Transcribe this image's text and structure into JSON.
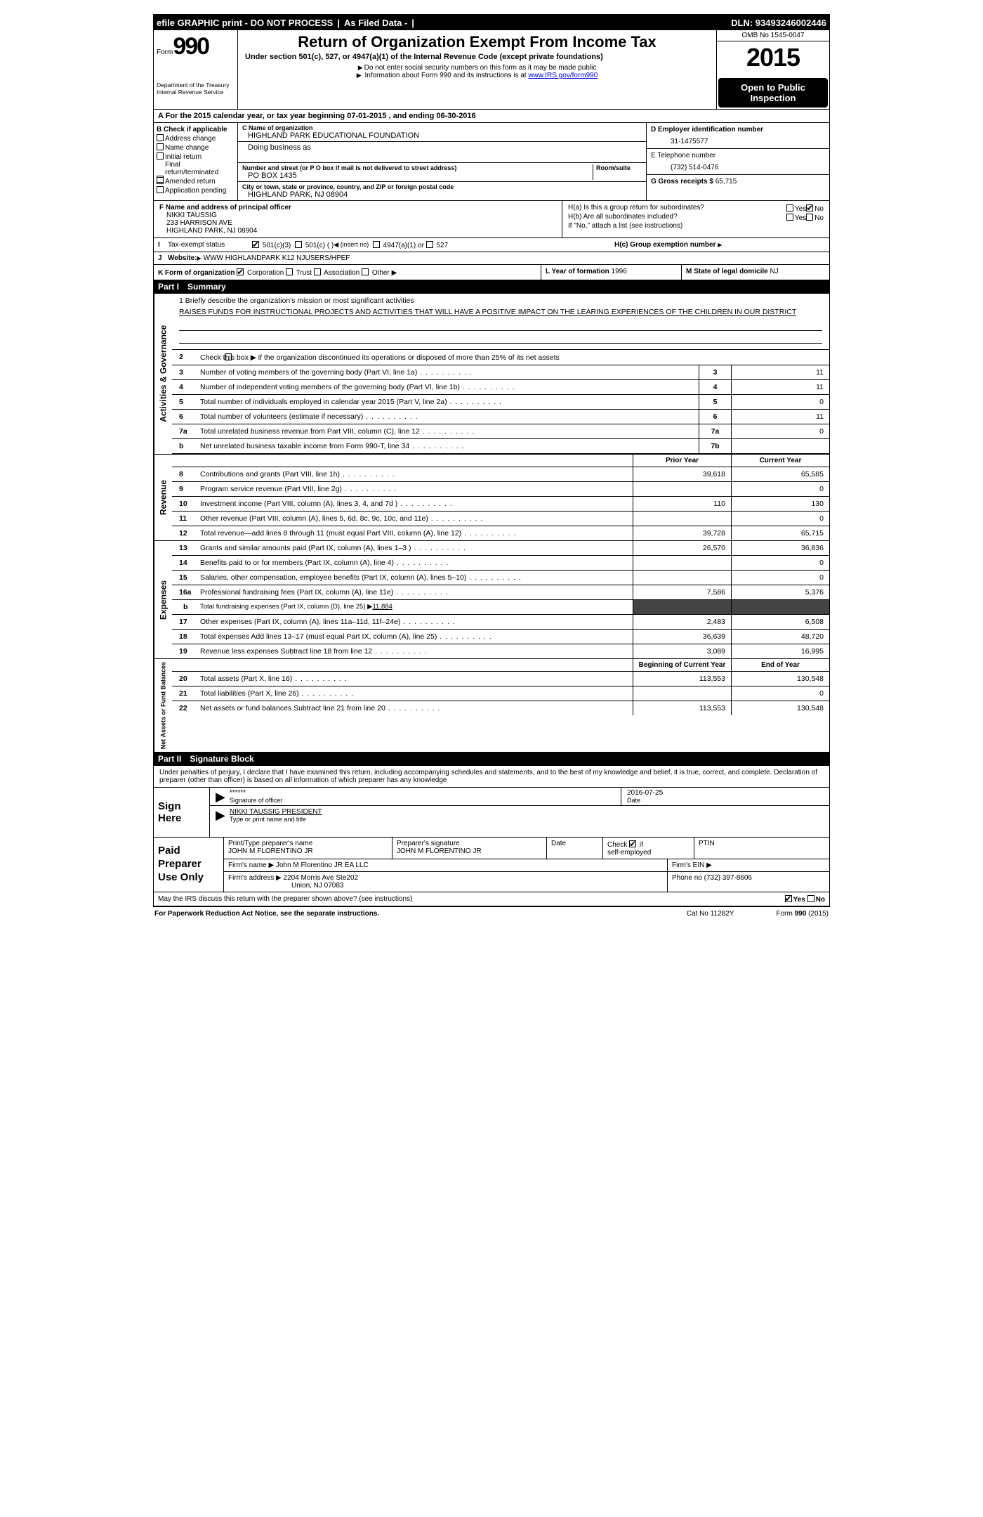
{
  "topbar": {
    "efile": "efile GRAPHIC print - DO NOT PROCESS",
    "asfiled": "As Filed Data -",
    "dln": "DLN: 93493246002446"
  },
  "header": {
    "form_word": "Form",
    "form_num": "990",
    "dept1": "Department of the Treasury",
    "dept2": "Internal Revenue Service",
    "title": "Return of Organization Exempt From Income Tax",
    "sub": "Under section 501(c), 527, or 4947(a)(1) of the Internal Revenue Code (except private foundations)",
    "note1": "Do not enter social security numbers on this form as it may be made public",
    "note2_pre": "Information about Form 990 and its instructions is at ",
    "note2_link": "www.IRS.gov/form990",
    "omb": "OMB No 1545-0047",
    "year": "2015",
    "inspect": "Open to Public Inspection"
  },
  "sec_a": {
    "text_pre": "A  For the 2015 calendar year, or tax year beginning ",
    "begin": "07-01-2015",
    "mid": " , and ending ",
    "end": "06-30-2016"
  },
  "col_b": {
    "hd": "B Check if applicable",
    "o1": "Address change",
    "o2": "Name change",
    "o3": "Initial return",
    "o4a": "Final",
    "o4b": "return/terminated",
    "o5": "Amended return",
    "o6": "Application pending"
  },
  "col_c": {
    "name_lbl": "C Name of organization",
    "name": "HIGHLAND PARK EDUCATIONAL FOUNDATION",
    "dba_lbl": "Doing business as",
    "street_lbl": "Number and street (or P O box if mail is not delivered to street address)",
    "room_lbl": "Room/suite",
    "street": "PO BOX 1435",
    "city_lbl": "City or town, state or province, country, and ZIP or foreign postal code",
    "city": "HIGHLAND PARK, NJ  08904"
  },
  "col_de": {
    "d_lbl": "D Employer identification number",
    "d_val": "31-1475577",
    "e_lbl": "E Telephone number",
    "e_val": "(732) 514-0476",
    "g_lbl": "G Gross receipts $ ",
    "g_val": "65,715"
  },
  "f": {
    "lbl": "F  Name and address of principal officer",
    "l1": "NIKKI TAUSSIG",
    "l2": "233 HARRISON AVE",
    "l3": "HIGHLAND PARK, NJ  08904"
  },
  "h": {
    "a": "H(a)  Is this a group return for subordinates?",
    "b": "H(b)  Are all subordinates included?",
    "note": "If \"No,\" attach a list (see instructions)",
    "c": "H(c)  Group exemption number",
    "yes": "Yes",
    "no": "No"
  },
  "i": {
    "tag": "I",
    "lbl": "Tax-exempt status",
    "o1": "501(c)(3)",
    "o2": "501(c) (  )",
    "o2ins": "(insert no)",
    "o3": "4947(a)(1) or",
    "o4": "527"
  },
  "j": {
    "tag": "J",
    "lbl": "Website:",
    "val": "WWW HIGHLANDPARK K12 NJUSERS/HPEF"
  },
  "k": {
    "lbl": "K Form of organization",
    "o1": "Corporation",
    "o2": "Trust",
    "o3": "Association",
    "o4": "Other"
  },
  "l": {
    "lbl": "L Year of formation",
    "val": "1996"
  },
  "m": {
    "lbl": "M State of legal domicile",
    "val": "NJ"
  },
  "part1": {
    "label": "Part I",
    "title": "Summary"
  },
  "mission": {
    "q": "1 Briefly describe the organization's mission or most significant activities",
    "text": "RAISES FUNDS FOR INSTRUCTIONAL PROJECTS AND ACTIVITIES THAT WILL HAVE A POSITIVE IMPACT ON THE LEARING EXPERIENCES OF THE CHILDREN IN OUR DISTRICT"
  },
  "line2": "Check this box ▶   if the organization discontinued its operations or disposed of more than 25% of its net assets",
  "lines_gov": [
    {
      "n": "3",
      "t": "Number of voting members of the governing body (Part VI, line 1a)",
      "box": "3",
      "v": "11"
    },
    {
      "n": "4",
      "t": "Number of independent voting members of the governing body (Part VI, line 1b)",
      "box": "4",
      "v": "11"
    },
    {
      "n": "5",
      "t": "Total number of individuals employed in calendar year 2015 (Part V, line 2a)",
      "box": "5",
      "v": "0"
    },
    {
      "n": "6",
      "t": "Total number of volunteers (estimate if necessary)",
      "box": "6",
      "v": "11"
    },
    {
      "n": "7a",
      "t": "Total unrelated business revenue from Part VIII, column (C), line 12",
      "box": "7a",
      "v": "0"
    },
    {
      "n": "b",
      "t": "Net unrelated business taxable income from Form 990-T, line 34",
      "box": "7b",
      "v": ""
    }
  ],
  "hdrs": {
    "prior": "Prior Year",
    "current": "Current Year",
    "boy": "Beginning of Current Year",
    "eoy": "End of Year"
  },
  "rev": [
    {
      "n": "8",
      "t": "Contributions and grants (Part VIII, line 1h)",
      "p": "39,618",
      "c": "65,585"
    },
    {
      "n": "9",
      "t": "Program service revenue (Part VIII, line 2g)",
      "p": "",
      "c": "0"
    },
    {
      "n": "10",
      "t": "Investment income (Part VIII, column (A), lines 3, 4, and 7d )",
      "p": "110",
      "c": "130"
    },
    {
      "n": "11",
      "t": "Other revenue (Part VIII, column (A), lines 5, 6d, 8c, 9c, 10c, and 11e)",
      "p": "",
      "c": "0"
    },
    {
      "n": "12",
      "t": "Total revenue—add lines 8 through 11 (must equal Part VIII, column (A), line 12)",
      "p": "39,728",
      "c": "65,715"
    }
  ],
  "exp": [
    {
      "n": "13",
      "t": "Grants and similar amounts paid (Part IX, column (A), lines 1–3 )",
      "p": "26,570",
      "c": "36,836"
    },
    {
      "n": "14",
      "t": "Benefits paid to or for members (Part IX, column (A), line 4)",
      "p": "",
      "c": "0"
    },
    {
      "n": "15",
      "t": "Salaries, other compensation, employee benefits (Part IX, column (A), lines 5–10)",
      "p": "",
      "c": "0"
    },
    {
      "n": "16a",
      "t": "Professional fundraising fees (Part IX, column (A), line 11e)",
      "p": "7,586",
      "c": "5,376"
    }
  ],
  "line_b": {
    "n": "b",
    "t": "Total fundraising expenses (Part IX, column (D), line 25) ▶",
    "v": "11,884"
  },
  "exp2": [
    {
      "n": "17",
      "t": "Other expenses (Part IX, column (A), lines 11a–11d, 11f–24e)",
      "p": "2,483",
      "c": "6,508"
    },
    {
      "n": "18",
      "t": "Total expenses Add lines 13–17 (must equal Part IX, column (A), line 25)",
      "p": "36,639",
      "c": "48,720"
    },
    {
      "n": "19",
      "t": "Revenue less expenses Subtract line 18 from line 12",
      "p": "3,089",
      "c": "16,995"
    }
  ],
  "na": [
    {
      "n": "20",
      "t": "Total assets (Part X, line 16)",
      "p": "113,553",
      "c": "130,548"
    },
    {
      "n": "21",
      "t": "Total liabilities (Part X, line 26)",
      "p": "",
      "c": "0"
    },
    {
      "n": "22",
      "t": "Net assets or fund balances Subtract line 21 from line 20",
      "p": "113,553",
      "c": "130,548"
    }
  ],
  "side": {
    "gov": "Activities & Governance",
    "rev": "Revenue",
    "exp": "Expenses",
    "na": "Net Assets or Fund Balances"
  },
  "part2": {
    "label": "Part II",
    "title": "Signature Block"
  },
  "sig": {
    "decl": "Under penalties of perjury, I declare that I have examined this return, including accompanying schedules and statements, and to the best of my knowledge and belief, it is true, correct, and complete. Declaration of preparer (other than officer) is based on all information of which preparer has any knowledge",
    "side": "Sign Here",
    "stars": "******",
    "sig_lbl": "Signature of officer",
    "date_lbl": "Date",
    "date": "2016-07-25",
    "name": "NIKKI TAUSSIG PRESIDENT",
    "name_lbl": "Type or print name and title"
  },
  "prep": {
    "side": "Paid Preparer Use Only",
    "c1": "Print/Type preparer's name",
    "v1": "JOHN M FLORENTINO JR",
    "c2": "Preparer's signature",
    "v2": "JOHN M FLORENTINO JR",
    "c3": "Date",
    "c4": "Check      if self-employed",
    "c5": "PTIN",
    "fname_lbl": "Firm's name   ▶ ",
    "fname": "John M Florentino JR EA LLC",
    "fein_lbl": "Firm's EIN ▶",
    "faddr_lbl": "Firm's address ▶ ",
    "faddr1": "2204 Morris Ave Ste202",
    "faddr2": "Union, NJ  07083",
    "fphone_lbl": "Phone no ",
    "fphone": "(732) 397-8606"
  },
  "discuss": {
    "q": "May the IRS discuss this return with the preparer shown above? (see instructions)",
    "yes": "Yes",
    "no": "No"
  },
  "footer": {
    "left": "For Paperwork Reduction Act Notice, see the separate instructions.",
    "mid": "Cat No 11282Y",
    "right": "Form 990 (2015)"
  },
  "colors": {
    "black": "#000000",
    "white": "#ffffff",
    "link": "#0000ee",
    "dark": "#444444"
  }
}
